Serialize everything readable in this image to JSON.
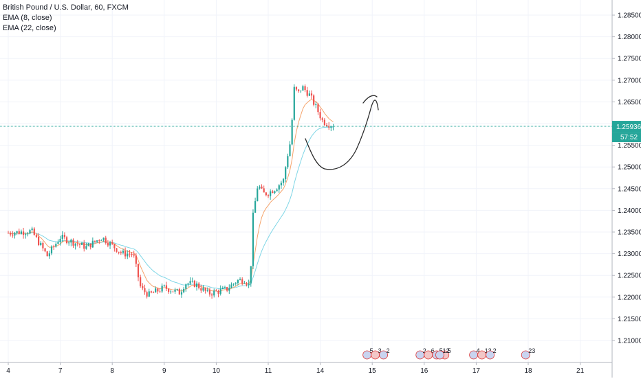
{
  "legend": {
    "title": "British Pound / U.S. Dollar, 60, FXCM",
    "ema8": "EMA (8, close)",
    "ema22": "EMA (22, close)"
  },
  "colors": {
    "up": "#26a69a",
    "down": "#ef5350",
    "ema8": "#f5a36b",
    "ema22": "#7fd6e6",
    "price_line": "#26a69a",
    "price_label_bg": "#26a69a",
    "drawing": "#2b2b2b"
  },
  "chart_data": {
    "type": "candlestick",
    "symbol": "British Pound / U.S. Dollar",
    "interval": "60",
    "source": "FXCM",
    "ylim": [
      1.2065,
      1.2895
    ],
    "y_ticks": [
      "1.28500",
      "1.28000",
      "1.27500",
      "1.27000",
      "1.26500",
      "1.26000",
      "1.25500",
      "1.25000",
      "1.24500",
      "1.24000",
      "1.23500",
      "1.23000",
      "1.22500",
      "1.22000",
      "1.21500",
      "1.21000"
    ],
    "x_ticks": [
      "4",
      "7",
      "8",
      "9",
      "10",
      "11",
      "14",
      "15",
      "16",
      "17",
      "18",
      "21"
    ],
    "current_price": "1.25936",
    "countdown": "57:52",
    "keypoints": [
      {
        "d": 0.0,
        "p": 1.2348
      },
      {
        "d": 0.45,
        "p": 1.2352
      },
      {
        "d": 0.75,
        "p": 1.2295
      },
      {
        "d": 1.0,
        "p": 1.2338
      },
      {
        "d": 1.5,
        "p": 1.2315
      },
      {
        "d": 1.8,
        "p": 1.2338
      },
      {
        "d": 2.2,
        "p": 1.23
      },
      {
        "d": 2.4,
        "p": 1.23
      },
      {
        "d": 2.55,
        "p": 1.222
      },
      {
        "d": 2.7,
        "p": 1.2205
      },
      {
        "d": 3.0,
        "p": 1.2222
      },
      {
        "d": 3.3,
        "p": 1.221
      },
      {
        "d": 3.4,
        "p": 1.2232
      },
      {
        "d": 3.6,
        "p": 1.223
      },
      {
        "d": 3.85,
        "p": 1.2208
      },
      {
        "d": 4.2,
        "p": 1.2218
      },
      {
        "d": 4.4,
        "p": 1.2238
      },
      {
        "d": 4.55,
        "p": 1.224
      },
      {
        "d": 4.65,
        "p": 1.2225
      },
      {
        "d": 4.7,
        "p": 1.238
      },
      {
        "d": 4.8,
        "p": 1.246
      },
      {
        "d": 4.9,
        "p": 1.2438
      },
      {
        "d": 5.0,
        "p": 1.244
      },
      {
        "d": 5.15,
        "p": 1.2452
      },
      {
        "d": 5.3,
        "p": 1.247
      },
      {
        "d": 5.35,
        "p": 1.2515
      },
      {
        "d": 5.43,
        "p": 1.256
      },
      {
        "d": 5.5,
        "p": 1.268
      },
      {
        "d": 5.58,
        "p": 1.267
      },
      {
        "d": 5.65,
        "p": 1.2685
      },
      {
        "d": 5.8,
        "p": 1.2665
      },
      {
        "d": 5.95,
        "p": 1.263
      },
      {
        "d": 6.05,
        "p": 1.2605
      },
      {
        "d": 6.15,
        "p": 1.26
      },
      {
        "d": 6.25,
        "p": 1.2594
      }
    ],
    "events": [
      {
        "day": 6.9,
        "labels": [
          "5",
          "3",
          "2"
        ]
      },
      {
        "day": 7.92,
        "labels": [
          "2",
          "6",
          "5",
          "5"
        ]
      },
      {
        "day": 8.3,
        "labels": [
          "12"
        ]
      },
      {
        "day": 8.95,
        "labels": [
          "4",
          "13",
          "2"
        ]
      },
      {
        "day": 9.95,
        "labels": [
          "23"
        ]
      }
    ]
  }
}
